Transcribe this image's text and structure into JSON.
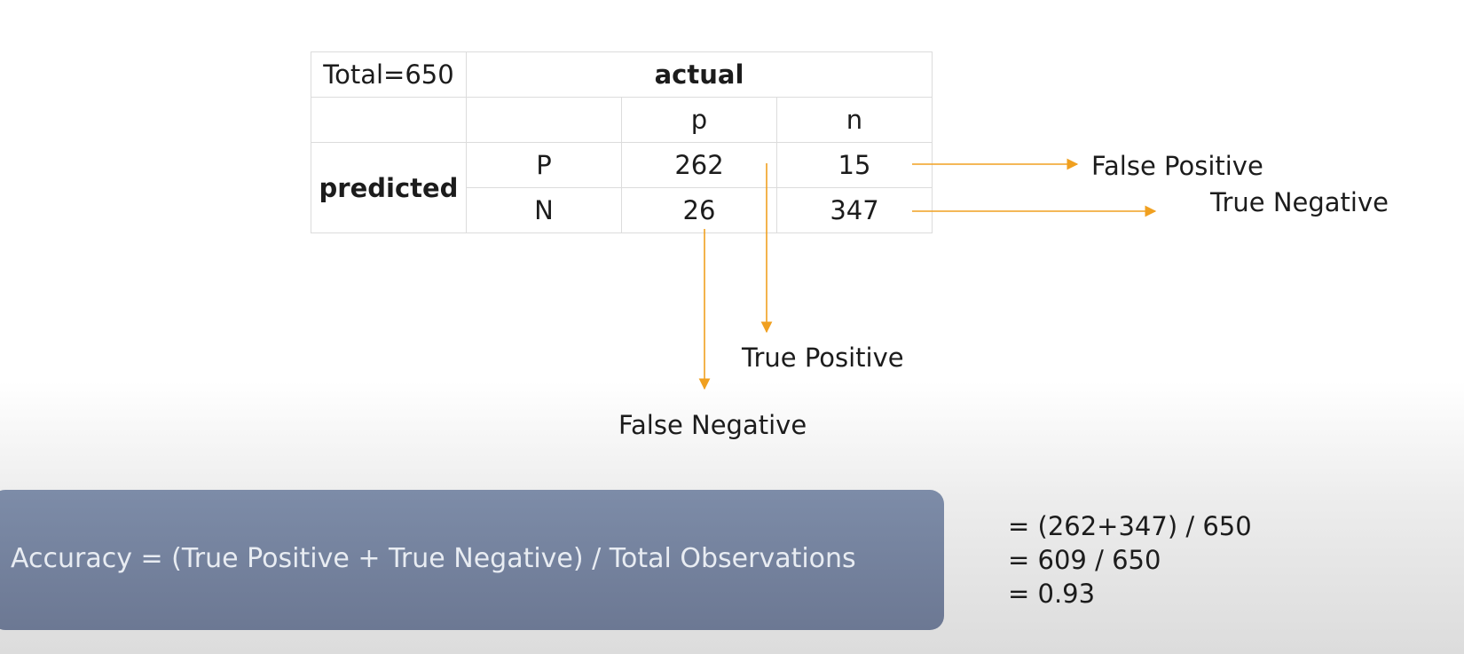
{
  "matrix": {
    "total": "Total=650",
    "actual_header": "actual",
    "predicted_label": "predicted",
    "actual_classes": [
      "p",
      "n"
    ],
    "predicted_classes": [
      "P",
      "N"
    ],
    "cells": [
      [
        "262",
        "15"
      ],
      [
        "26",
        "347"
      ]
    ]
  },
  "annotations": {
    "false_positive": "False Positive",
    "true_negative": "True Negative",
    "true_positive": "True Positive",
    "false_negative": "False Negative"
  },
  "formula": {
    "text": "Accuracy = (True Positive + True Negative) / Total Observations"
  },
  "calculation": {
    "lines": [
      "= (262+347) / 650",
      "= 609 / 650",
      "= 0.93"
    ]
  },
  "colors": {
    "arrow": "#f0a020",
    "formula_box": "#7684a0",
    "formula_text": "#e8ecf2"
  }
}
